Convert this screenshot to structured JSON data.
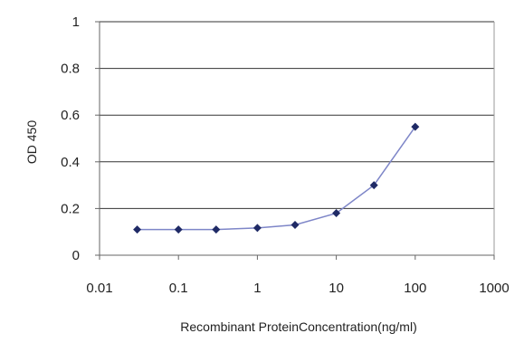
{
  "chart_data": {
    "type": "line",
    "title": "",
    "xlabel": "Recombinant ProteinConcentration(ng/ml)",
    "ylabel": "OD 450",
    "xscale": "log",
    "xlim": [
      0.01,
      1000
    ],
    "ylim": [
      0,
      1
    ],
    "xticks": [
      {
        "value": 0.01,
        "label": "0.01"
      },
      {
        "value": 0.1,
        "label": "0.1"
      },
      {
        "value": 1,
        "label": "1"
      },
      {
        "value": 10,
        "label": "10"
      },
      {
        "value": 100,
        "label": "100"
      },
      {
        "value": 1000,
        "label": "1000"
      }
    ],
    "yticks": [
      {
        "value": 0,
        "label": "0"
      },
      {
        "value": 0.2,
        "label": "0.2"
      },
      {
        "value": 0.4,
        "label": "0.4"
      },
      {
        "value": 0.6,
        "label": "0.6"
      },
      {
        "value": 0.8,
        "label": "0.8"
      },
      {
        "value": 1,
        "label": "1"
      }
    ],
    "grid": "horizontal",
    "legend": "none",
    "series": [
      {
        "x": [
          0.03,
          0.1,
          0.3,
          1,
          3,
          10,
          30,
          100
        ],
        "y": [
          0.11,
          0.11,
          0.11,
          0.117,
          0.13,
          0.18,
          0.3,
          0.55
        ]
      }
    ],
    "colors": {
      "line": "#7e86c8",
      "marker": "#1f2a66",
      "grid": "#333333",
      "axis": "#666666"
    }
  }
}
